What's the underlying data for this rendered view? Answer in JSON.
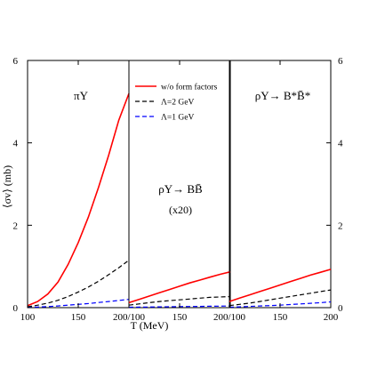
{
  "chart_data": {
    "type": "line",
    "xlabel": "T (MeV)",
    "ylabel": "⟨σv⟩ (mb)",
    "ylim": [
      0,
      6
    ],
    "yticks": [
      0,
      2,
      4,
      6
    ],
    "xticks": [
      100,
      150,
      200
    ],
    "xlim_per_panel": [
      100,
      200
    ],
    "grid": false,
    "legend": {
      "placement": "top-right of first panel",
      "entries": [
        {
          "label": "w/o form factors",
          "color": "#ff0000",
          "dash": "solid"
        },
        {
          "label": "Λ=2 GeV",
          "color": "#000000",
          "dash": "dashed"
        },
        {
          "label": "Λ=1 GeV",
          "color": "#0000ff",
          "dash": "dashed"
        }
      ]
    },
    "x": [
      100,
      110,
      120,
      130,
      140,
      150,
      160,
      170,
      180,
      190,
      200
    ],
    "panels": [
      {
        "title_main": "πΥ",
        "title_sub": "",
        "series": [
          {
            "color": "#ff0000",
            "dash": "solid",
            "values": [
              0.05,
              0.15,
              0.33,
              0.62,
              1.05,
              1.58,
              2.2,
              2.92,
              3.7,
              4.55,
              5.2
            ]
          },
          {
            "color": "#000000",
            "dash": "dashed",
            "values": [
              0.02,
              0.06,
              0.11,
              0.18,
              0.27,
              0.38,
              0.5,
              0.64,
              0.8,
              0.97,
              1.15
            ]
          },
          {
            "color": "#0000ff",
            "dash": "dashed",
            "values": [
              0.005,
              0.015,
              0.025,
              0.04,
              0.06,
              0.08,
              0.1,
              0.125,
              0.15,
              0.175,
              0.2
            ]
          }
        ]
      },
      {
        "title_main": "ρΥ→ BB̄",
        "title_sub": "(x20)",
        "series": [
          {
            "color": "#ff0000",
            "dash": "solid",
            "values": [
              0.12,
              0.2,
              0.28,
              0.36,
              0.44,
              0.52,
              0.6,
              0.67,
              0.74,
              0.81,
              0.87
            ]
          },
          {
            "color": "#000000",
            "dash": "dashed",
            "values": [
              0.06,
              0.09,
              0.12,
              0.15,
              0.17,
              0.19,
              0.21,
              0.23,
              0.25,
              0.26,
              0.27
            ]
          },
          {
            "color": "#0000ff",
            "dash": "dashed",
            "values": [
              0.01,
              0.013,
              0.016,
              0.019,
              0.022,
              0.025,
              0.028,
              0.031,
              0.034,
              0.037,
              0.04
            ]
          }
        ]
      },
      {
        "title_main": "ρΥ→ B*B̄*",
        "title_sub": "",
        "series": [
          {
            "color": "#ff0000",
            "dash": "solid",
            "values": [
              0.15,
              0.23,
              0.31,
              0.39,
              0.47,
              0.55,
              0.63,
              0.71,
              0.79,
              0.86,
              0.93
            ]
          },
          {
            "color": "#000000",
            "dash": "dashed",
            "values": [
              0.05,
              0.08,
              0.11,
              0.15,
              0.19,
              0.23,
              0.27,
              0.31,
              0.35,
              0.39,
              0.43
            ]
          },
          {
            "color": "#0000ff",
            "dash": "dashed",
            "values": [
              0.01,
              0.02,
              0.03,
              0.04,
              0.05,
              0.06,
              0.075,
              0.09,
              0.105,
              0.12,
              0.14
            ]
          }
        ]
      }
    ]
  }
}
